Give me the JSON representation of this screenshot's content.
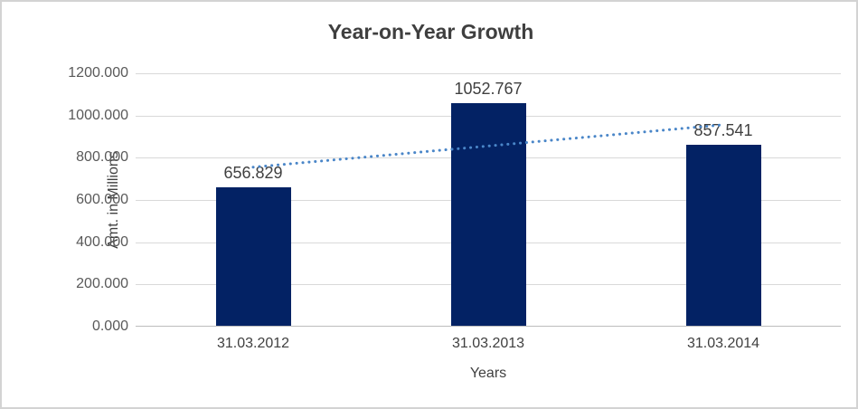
{
  "chart_data": {
    "type": "bar",
    "title": "Year-on-Year Growth",
    "xlabel": "Years",
    "ylabel": "Amt. in Millions",
    "categories": [
      "31.03.2012",
      "31.03.2013",
      "31.03.2014"
    ],
    "values": [
      656.829,
      1052.767,
      857.541
    ],
    "data_labels": [
      "656.829",
      "1052.767",
      "857.541"
    ],
    "y_tick_labels": [
      "1200.000",
      "1000.000",
      "800.000",
      "600.000",
      "400.000",
      "200.000",
      "0.000"
    ],
    "y_tick_values": [
      1200,
      1000,
      800,
      600,
      400,
      200,
      0
    ],
    "ylim": [
      0,
      1200
    ],
    "grid": true,
    "legend": "none",
    "bar_color": "#032264",
    "trendline": {
      "type": "linear",
      "style": "dotted",
      "color": "#4a86c8",
      "start_value": 755.4,
      "end_value": 956.1
    }
  }
}
